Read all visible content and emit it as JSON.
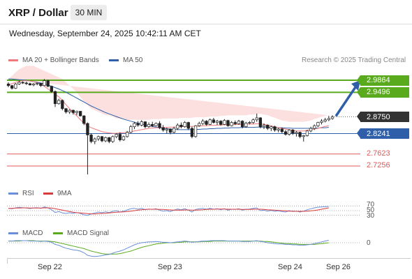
{
  "header": {
    "title": "XRP / Dollar",
    "interval": "30 MIN",
    "datetime": "Wednesday, September 24, 2025 10:42:11 AM CET"
  },
  "legend": {
    "bollinger": "MA 20 + Bollinger Bands",
    "ma50": "MA 50",
    "credit": "Research © 2025 Trading Central",
    "rsi": "RSI",
    "rsi_ma": "9MA",
    "macd": "MACD",
    "macd_signal": "MACD Signal"
  },
  "colors": {
    "green_level": "#5aaa1e",
    "blue_level": "#2e5fa8",
    "red_level": "#e05a5a",
    "last_price": "#333333",
    "band_fill": "#fbd5d5",
    "ma20": "#f07a7a",
    "ma50": "#2e5fa8",
    "rsi": "#6a8fd8",
    "rsi_ma": "#d93a3a",
    "macd": "#6a8fd8",
    "macd_signal": "#5aaa1e",
    "arrow": "#2e5fa8"
  },
  "chart_data": {
    "type": "candlestick",
    "levels": [
      {
        "value": 2.9864,
        "label": "2.9864",
        "kind": "resistance"
      },
      {
        "value": 2.9496,
        "label": "2.9496",
        "kind": "resistance"
      },
      {
        "value": 2.875,
        "label": "2.8750",
        "kind": "last"
      },
      {
        "value": 2.8241,
        "label": "2.8241",
        "kind": "pivot"
      },
      {
        "value": 2.7623,
        "label": "2.7623",
        "kind": "support"
      },
      {
        "value": 2.7256,
        "label": "2.7256",
        "kind": "support"
      }
    ],
    "x_tick_labels": [
      "Sep 22",
      "Sep 23",
      "Sep 24",
      "Sep 26"
    ],
    "rsi_levels": [
      "70",
      "50",
      "30"
    ],
    "macd_levels": [
      "0"
    ],
    "price": [
      [
        2.975,
        2.98,
        2.965,
        2.97
      ],
      [
        2.97,
        2.972,
        2.958,
        2.962
      ],
      [
        2.962,
        2.978,
        2.96,
        2.975
      ],
      [
        2.975,
        2.985,
        2.972,
        2.98
      ],
      [
        2.98,
        2.983,
        2.975,
        2.978
      ],
      [
        2.978,
        2.982,
        2.972,
        2.976
      ],
      [
        2.976,
        2.979,
        2.97,
        2.972
      ],
      [
        2.972,
        2.978,
        2.968,
        2.975
      ],
      [
        2.975,
        2.979,
        2.971,
        2.977
      ],
      [
        2.977,
        2.978,
        2.966,
        2.97
      ],
      [
        2.97,
        2.99,
        2.968,
        2.985
      ],
      [
        2.985,
        2.988,
        2.965,
        2.968
      ],
      [
        2.968,
        2.97,
        2.948,
        2.952
      ],
      [
        2.952,
        2.955,
        2.905,
        2.915
      ],
      [
        2.915,
        2.93,
        2.912,
        2.925
      ],
      [
        2.925,
        2.928,
        2.895,
        2.9
      ],
      [
        2.9,
        2.902,
        2.885,
        2.89
      ],
      [
        2.89,
        2.898,
        2.884,
        2.895
      ],
      [
        2.895,
        2.897,
        2.882,
        2.888
      ],
      [
        2.888,
        2.894,
        2.88,
        2.892
      ],
      [
        2.892,
        2.893,
        2.876,
        2.878
      ],
      [
        2.878,
        2.88,
        2.85,
        2.855
      ],
      [
        2.855,
        2.858,
        2.7,
        2.82
      ],
      [
        2.82,
        2.825,
        2.795,
        2.8
      ],
      [
        2.8,
        2.812,
        2.792,
        2.808
      ],
      [
        2.808,
        2.818,
        2.802,
        2.815
      ],
      [
        2.815,
        2.817,
        2.798,
        2.802
      ],
      [
        2.802,
        2.815,
        2.798,
        2.812
      ],
      [
        2.812,
        2.814,
        2.795,
        2.8
      ],
      [
        2.8,
        2.818,
        2.796,
        2.815
      ],
      [
        2.815,
        2.825,
        2.81,
        2.822
      ],
      [
        2.822,
        2.828,
        2.8,
        2.805
      ],
      [
        2.805,
        2.818,
        2.802,
        2.815
      ],
      [
        2.815,
        2.832,
        2.812,
        2.828
      ],
      [
        2.828,
        2.85,
        2.825,
        2.845
      ],
      [
        2.845,
        2.86,
        2.838,
        2.855
      ],
      [
        2.855,
        2.862,
        2.845,
        2.85
      ],
      [
        2.85,
        2.865,
        2.846,
        2.86
      ],
      [
        2.86,
        2.862,
        2.84,
        2.845
      ],
      [
        2.845,
        2.858,
        2.842,
        2.852
      ],
      [
        2.852,
        2.86,
        2.844,
        2.848
      ],
      [
        2.848,
        2.858,
        2.846,
        2.855
      ],
      [
        2.855,
        2.862,
        2.838,
        2.842
      ],
      [
        2.842,
        2.85,
        2.83,
        2.835
      ],
      [
        2.835,
        2.842,
        2.825,
        2.838
      ],
      [
        2.838,
        2.84,
        2.822,
        2.828
      ],
      [
        2.828,
        2.845,
        2.825,
        2.84
      ],
      [
        2.84,
        2.855,
        2.835,
        2.85
      ],
      [
        2.85,
        2.858,
        2.84,
        2.845
      ],
      [
        2.845,
        2.862,
        2.842,
        2.858
      ],
      [
        2.858,
        2.86,
        2.835,
        2.84
      ],
      [
        2.84,
        2.845,
        2.81,
        2.815
      ],
      [
        2.815,
        2.85,
        2.812,
        2.848
      ],
      [
        2.848,
        2.86,
        2.845,
        2.855
      ],
      [
        2.855,
        2.868,
        2.85,
        2.862
      ],
      [
        2.862,
        2.865,
        2.848,
        2.852
      ],
      [
        2.852,
        2.87,
        2.85,
        2.866
      ],
      [
        2.866,
        2.872,
        2.855,
        2.858
      ],
      [
        2.858,
        2.866,
        2.85,
        2.862
      ],
      [
        2.862,
        2.865,
        2.848,
        2.852
      ],
      [
        2.852,
        2.868,
        2.85,
        2.864
      ],
      [
        2.864,
        2.866,
        2.845,
        2.848
      ],
      [
        2.848,
        2.862,
        2.846,
        2.858
      ],
      [
        2.858,
        2.864,
        2.85,
        2.854
      ],
      [
        2.854,
        2.866,
        2.851,
        2.862
      ],
      [
        2.862,
        2.865,
        2.84,
        2.845
      ],
      [
        2.845,
        2.86,
        2.842,
        2.856
      ],
      [
        2.856,
        2.862,
        2.852,
        2.858
      ],
      [
        2.858,
        2.87,
        2.854,
        2.866
      ],
      [
        2.866,
        2.885,
        2.86,
        2.872
      ],
      [
        2.872,
        2.874,
        2.84,
        2.845
      ],
      [
        2.845,
        2.855,
        2.838,
        2.85
      ],
      [
        2.85,
        2.852,
        2.835,
        2.84
      ],
      [
        2.84,
        2.848,
        2.832,
        2.845
      ],
      [
        2.845,
        2.848,
        2.83,
        2.835
      ],
      [
        2.835,
        2.842,
        2.828,
        2.838
      ],
      [
        2.838,
        2.842,
        2.825,
        2.83
      ],
      [
        2.83,
        2.835,
        2.818,
        2.822
      ],
      [
        2.822,
        2.838,
        2.818,
        2.835
      ],
      [
        2.835,
        2.838,
        2.82,
        2.825
      ],
      [
        2.825,
        2.832,
        2.815,
        2.828
      ],
      [
        2.828,
        2.83,
        2.81,
        2.815
      ],
      [
        2.815,
        2.82,
        2.8,
        2.818
      ],
      [
        2.818,
        2.835,
        2.815,
        2.832
      ],
      [
        2.832,
        2.845,
        2.828,
        2.84
      ],
      [
        2.84,
        2.852,
        2.835,
        2.848
      ],
      [
        2.848,
        2.86,
        2.844,
        2.858
      ],
      [
        2.858,
        2.868,
        2.852,
        2.862
      ],
      [
        2.862,
        2.872,
        2.858,
        2.866
      ],
      [
        2.866,
        2.878,
        2.862,
        2.87
      ],
      [
        2.87,
        2.88,
        2.866,
        2.875
      ]
    ],
    "bollinger_upper": [
      2.99,
      3.0,
      3.01,
      3.02,
      3.025,
      3.03,
      3.03,
      3.03,
      3.025,
      3.02,
      3.015,
      3.01,
      3.005,
      3.0,
      2.995,
      2.99,
      2.98,
      2.97,
      2.96,
      2.95,
      2.935,
      2.92,
      2.91,
      2.9,
      2.895,
      2.89,
      2.885,
      2.88,
      2.88,
      2.875,
      2.87,
      2.87,
      2.868,
      2.866,
      2.866,
      2.866,
      2.866,
      2.866,
      2.866,
      2.866,
      2.868,
      2.868,
      2.868,
      2.87,
      2.87,
      2.87,
      2.87,
      2.87,
      2.872,
      2.872,
      2.872,
      2.872,
      2.874,
      2.874,
      2.874,
      2.874,
      2.876,
      2.876,
      2.876,
      2.878,
      2.878,
      2.88,
      2.88,
      2.88,
      2.88,
      2.88,
      2.88,
      2.882,
      2.882,
      2.884,
      2.884,
      2.882,
      2.88,
      2.876,
      2.872,
      2.868,
      2.864,
      2.862,
      2.86,
      2.86,
      2.86,
      2.86,
      2.86,
      2.862,
      2.864,
      2.868,
      2.872,
      2.875,
      2.878,
      2.88
    ],
    "bollinger_lower": [
      2.955,
      2.955,
      2.955,
      2.955,
      2.955,
      2.952,
      2.95,
      2.946,
      2.94,
      2.932,
      2.925,
      2.915,
      2.905,
      2.895,
      2.885,
      2.87,
      2.855,
      2.84,
      2.825,
      2.815,
      2.805,
      2.798,
      2.792,
      2.788,
      2.786,
      2.784,
      2.782,
      2.782,
      2.782,
      2.782,
      2.784,
      2.786,
      2.788,
      2.79,
      2.792,
      2.794,
      2.796,
      2.798,
      2.8,
      2.8,
      2.802,
      2.803,
      2.804,
      2.805,
      2.806,
      2.807,
      2.808,
      2.808,
      2.809,
      2.81,
      2.81,
      2.811,
      2.812,
      2.812,
      2.813,
      2.814,
      2.814,
      2.815,
      2.815,
      2.816,
      2.816,
      2.817,
      2.817,
      2.818,
      2.818,
      2.818,
      2.818,
      2.818,
      2.818,
      2.818,
      2.818,
      2.815,
      2.812,
      2.81,
      2.808,
      2.806,
      2.805,
      2.804,
      2.803,
      2.803,
      2.803,
      2.804,
      2.805,
      2.806,
      2.808,
      2.81,
      2.812,
      2.814,
      2.815,
      2.816
    ],
    "ma20": [
      2.972,
      2.976,
      2.98,
      2.983,
      2.985,
      2.985,
      2.984,
      2.982,
      2.978,
      2.974,
      2.968,
      2.96,
      2.952,
      2.944,
      2.936,
      2.925,
      2.912,
      2.9,
      2.888,
      2.878,
      2.866,
      2.856,
      2.848,
      2.842,
      2.838,
      2.834,
      2.83,
      2.828,
      2.826,
      2.825,
      2.825,
      2.826,
      2.827,
      2.828,
      2.83,
      2.832,
      2.834,
      2.836,
      2.838,
      2.84,
      2.841,
      2.842,
      2.842,
      2.843,
      2.843,
      2.844,
      2.844,
      2.845,
      2.845,
      2.846,
      2.846,
      2.846,
      2.847,
      2.847,
      2.848,
      2.848,
      2.849,
      2.849,
      2.85,
      2.85,
      2.851,
      2.851,
      2.851,
      2.852,
      2.852,
      2.852,
      2.853,
      2.853,
      2.853,
      2.854,
      2.854,
      2.852,
      2.85,
      2.848,
      2.845,
      2.842,
      2.84,
      2.838,
      2.836,
      2.834,
      2.832,
      2.832,
      2.832,
      2.834,
      2.836,
      2.838,
      2.84,
      2.843,
      2.846,
      2.848
    ],
    "ma50": [
      2.99,
      2.99,
      2.989,
      2.988,
      2.987,
      2.986,
      2.984,
      2.982,
      2.98,
      2.978,
      2.975,
      2.972,
      2.968,
      2.964,
      2.96,
      2.955,
      2.95,
      2.944,
      2.938,
      2.932,
      2.926,
      2.92,
      2.914,
      2.908,
      2.903,
      2.898,
      2.893,
      2.888,
      2.884,
      2.88,
      2.876,
      2.872,
      2.868,
      2.865,
      2.862,
      2.859,
      2.856,
      2.853,
      2.85,
      2.848,
      2.846,
      2.844,
      2.842,
      2.84,
      2.839,
      2.838,
      2.837,
      2.836,
      2.836,
      2.836,
      2.836,
      2.836,
      2.837,
      2.837,
      2.838,
      2.838,
      2.839,
      2.839,
      2.84,
      2.84,
      2.841,
      2.841,
      2.842,
      2.842,
      2.842,
      2.843,
      2.843,
      2.843,
      2.843,
      2.844,
      2.844,
      2.844,
      2.844,
      2.843,
      2.843,
      2.842,
      2.842,
      2.841,
      2.841,
      2.84,
      2.84,
      2.84,
      2.84,
      2.84,
      2.84,
      2.841,
      2.841,
      2.842,
      2.842,
      2.843
    ],
    "rsi": [
      60,
      58,
      62,
      64,
      63,
      61,
      59,
      62,
      63,
      60,
      66,
      62,
      54,
      42,
      46,
      40,
      38,
      41,
      39,
      42,
      38,
      32,
      30,
      36,
      40,
      44,
      41,
      45,
      42,
      47,
      50,
      44,
      48,
      53,
      58,
      60,
      56,
      60,
      54,
      57,
      55,
      58,
      52,
      48,
      50,
      46,
      52,
      57,
      54,
      58,
      52,
      44,
      55,
      58,
      60,
      56,
      60,
      56,
      58,
      54,
      58,
      52,
      56,
      55,
      58,
      52,
      56,
      57,
      60,
      62,
      50,
      52,
      48,
      51,
      47,
      49,
      46,
      44,
      50,
      46,
      48,
      44,
      48,
      54,
      58,
      62,
      65,
      66,
      67,
      68
    ],
    "rsi_ma": [
      60,
      60,
      61,
      61,
      62,
      62,
      61,
      61,
      61,
      61,
      62,
      62,
      61,
      58,
      55,
      52,
      49,
      46,
      43,
      41,
      40,
      39,
      37,
      36,
      36,
      37,
      38,
      39,
      40,
      42,
      43,
      44,
      45,
      46,
      48,
      50,
      52,
      54,
      55,
      56,
      56,
      56,
      55,
      55,
      54,
      53,
      52,
      52,
      52,
      53,
      53,
      52,
      52,
      53,
      54,
      55,
      56,
      56,
      57,
      57,
      57,
      56,
      56,
      56,
      56,
      55,
      55,
      55,
      56,
      56,
      56,
      55,
      54,
      53,
      52,
      51,
      50,
      49,
      48,
      48,
      47,
      47,
      47,
      48,
      49,
      51,
      53,
      56,
      59,
      62
    ],
    "macd": [
      0.004,
      0.004,
      0.005,
      0.005,
      0.005,
      0.005,
      0.004,
      0.004,
      0.004,
      0.003,
      0.004,
      0.003,
      0.001,
      -0.004,
      -0.006,
      -0.01,
      -0.013,
      -0.015,
      -0.017,
      -0.018,
      -0.02,
      -0.024,
      -0.03,
      -0.032,
      -0.033,
      -0.032,
      -0.031,
      -0.029,
      -0.028,
      -0.025,
      -0.022,
      -0.02,
      -0.017,
      -0.013,
      -0.009,
      -0.005,
      -0.002,
      0.0,
      0.001,
      0.002,
      0.002,
      0.003,
      0.002,
      0.001,
      0.001,
      0.0,
      0.001,
      0.002,
      0.003,
      0.004,
      0.003,
      0.001,
      0.002,
      0.003,
      0.004,
      0.004,
      0.005,
      0.005,
      0.005,
      0.005,
      0.005,
      0.004,
      0.004,
      0.004,
      0.004,
      0.003,
      0.003,
      0.003,
      0.004,
      0.005,
      0.003,
      0.002,
      0.0,
      -0.001,
      -0.002,
      -0.003,
      -0.003,
      -0.004,
      -0.004,
      -0.005,
      -0.005,
      -0.006,
      -0.006,
      -0.005,
      -0.004,
      -0.002,
      0.0,
      0.002,
      0.004,
      0.006
    ],
    "macd_signal": [
      0.004,
      0.004,
      0.004,
      0.004,
      0.005,
      0.005,
      0.005,
      0.005,
      0.004,
      0.004,
      0.004,
      0.004,
      0.003,
      0.002,
      0.0,
      -0.002,
      -0.004,
      -0.006,
      -0.008,
      -0.01,
      -0.012,
      -0.014,
      -0.017,
      -0.02,
      -0.022,
      -0.024,
      -0.026,
      -0.027,
      -0.027,
      -0.027,
      -0.027,
      -0.026,
      -0.024,
      -0.022,
      -0.02,
      -0.017,
      -0.014,
      -0.011,
      -0.009,
      -0.007,
      -0.005,
      -0.003,
      -0.002,
      -0.001,
      0.0,
      0.0,
      0.0,
      0.001,
      0.001,
      0.002,
      0.002,
      0.002,
      0.002,
      0.002,
      0.003,
      0.003,
      0.003,
      0.004,
      0.004,
      0.004,
      0.004,
      0.004,
      0.004,
      0.004,
      0.004,
      0.004,
      0.004,
      0.004,
      0.004,
      0.004,
      0.004,
      0.003,
      0.003,
      0.002,
      0.001,
      0.0,
      -0.001,
      -0.002,
      -0.002,
      -0.003,
      -0.003,
      -0.004,
      -0.004,
      -0.004,
      -0.004,
      -0.004,
      -0.003,
      -0.002,
      -0.001,
      0.0
    ],
    "arrow": {
      "from": 2.875,
      "to": 2.9864
    }
  }
}
